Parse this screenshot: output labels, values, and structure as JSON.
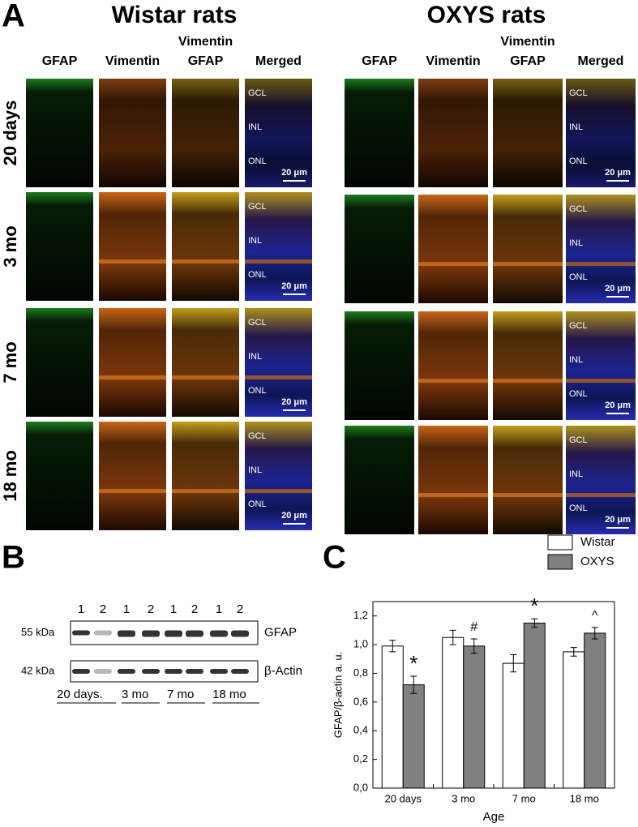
{
  "panel_a": {
    "label": "A",
    "groups": [
      {
        "title": "Wistar rats",
        "columns": [
          [
            "GFAP"
          ],
          [
            "Vimentin"
          ],
          [
            "Vimentin",
            "GFAP"
          ],
          [
            "Merged"
          ]
        ]
      },
      {
        "title": "OXYS rats",
        "columns": [
          [
            "GFAP"
          ],
          [
            "Vimentin"
          ],
          [
            "Vimentin",
            "GFAP"
          ],
          [
            "Merged"
          ]
        ]
      }
    ],
    "rows": [
      "20 days",
      "3 mo",
      "7 mo",
      "18 mo"
    ],
    "layers": [
      "GCL",
      "INL",
      "ONL"
    ],
    "scale_bar": "20 μm"
  },
  "panel_b": {
    "label": "B",
    "lanes": [
      "1",
      "2",
      "1",
      "2",
      "1",
      "2",
      "1",
      "2"
    ],
    "blots": [
      {
        "marker": "55 kDa",
        "protein": "GFAP"
      },
      {
        "marker": "42 kDa",
        "protein": "β-Actin"
      }
    ],
    "groups": [
      "20 days.",
      "3 mo",
      "7 mo",
      "18 mo"
    ]
  },
  "chart_data": {
    "type": "bar",
    "label": "C",
    "x_label": "Age",
    "y_label": "GFAP/β-actin a. u.",
    "categories": [
      "20 days",
      "3 mo",
      "7 mo",
      "18 mo"
    ],
    "series": [
      {
        "name": "Wistar",
        "color": "#ffffff",
        "values": [
          0.99,
          1.05,
          0.87,
          0.95
        ],
        "errors": [
          0.04,
          0.05,
          0.06,
          0.03
        ]
      },
      {
        "name": "OXYS",
        "color": "#808080",
        "values": [
          0.72,
          0.99,
          1.15,
          1.08
        ],
        "errors": [
          0.06,
          0.05,
          0.03,
          0.04
        ],
        "significance": [
          "*",
          "#",
          "*",
          "^"
        ]
      }
    ],
    "ylim": [
      0,
      1.3
    ],
    "yticks": [
      {
        "value": 0,
        "label": "0,0"
      },
      {
        "value": 0.2,
        "label": "0,2"
      },
      {
        "value": 0.4,
        "label": "0,4"
      },
      {
        "value": 0.6,
        "label": "0,6"
      },
      {
        "value": 0.8,
        "label": "0,8"
      },
      {
        "value": 1,
        "label": "1,0"
      },
      {
        "value": 1.2,
        "label": "1,2"
      }
    ]
  }
}
